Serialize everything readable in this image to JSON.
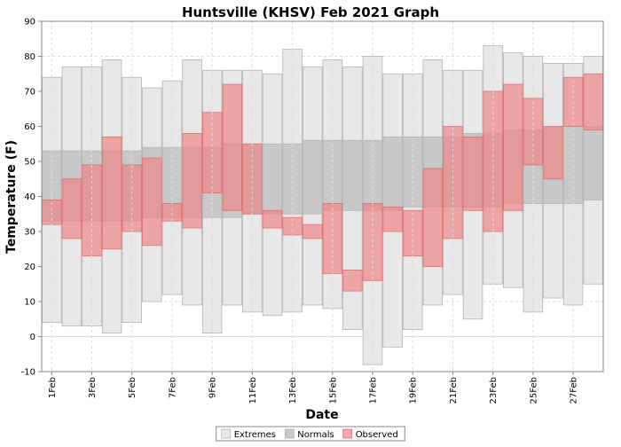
{
  "chart_data": {
    "type": "bar",
    "title": "Huntsville (KHSV) Feb 2021 Graph",
    "xlabel": "Date",
    "ylabel": "Temperature (F)",
    "ylim": [
      -10,
      90
    ],
    "y_ticks": [
      -10,
      0,
      10,
      20,
      30,
      40,
      50,
      60,
      70,
      80,
      90
    ],
    "grid": true,
    "legend_position": "bottom-center",
    "categories": [
      "1Feb",
      "2Feb",
      "3Feb",
      "4Feb",
      "5Feb",
      "6Feb",
      "7Feb",
      "8Feb",
      "9Feb",
      "10Feb",
      "11Feb",
      "12Feb",
      "13Feb",
      "14Feb",
      "15Feb",
      "16Feb",
      "17Feb",
      "18Feb",
      "19Feb",
      "20Feb",
      "21Feb",
      "22Feb",
      "23Feb",
      "24Feb",
      "25Feb",
      "26Feb",
      "27Feb",
      "28Feb"
    ],
    "x_tick_labels": [
      "1Feb",
      "3Feb",
      "5Feb",
      "7Feb",
      "9Feb",
      "11Feb",
      "13Feb",
      "15Feb",
      "17Feb",
      "19Feb",
      "21Feb",
      "23Feb",
      "25Feb",
      "27Feb"
    ],
    "series": [
      {
        "name": "Extremes",
        "color": "#e8e8e8",
        "low": [
          4,
          3,
          3,
          1,
          4,
          10,
          12,
          9,
          1,
          9,
          7,
          6,
          7,
          9,
          8,
          2,
          -8,
          -3,
          2,
          9,
          12,
          5,
          15,
          14,
          7,
          11,
          9,
          15
        ],
        "high": [
          74,
          77,
          77,
          79,
          74,
          71,
          73,
          79,
          76,
          76,
          76,
          75,
          82,
          77,
          79,
          77,
          80,
          75,
          75,
          79,
          76,
          76,
          83,
          81,
          80,
          78,
          78,
          80
        ]
      },
      {
        "name": "Normals",
        "color": "#c8c8c8",
        "low": [
          33,
          33,
          33,
          33,
          33,
          34,
          34,
          34,
          34,
          34,
          35,
          35,
          35,
          35,
          36,
          36,
          36,
          36,
          37,
          37,
          37,
          37,
          37,
          38,
          38,
          38,
          38,
          39
        ],
        "high": [
          53,
          53,
          53,
          53,
          53,
          54,
          54,
          54,
          54,
          55,
          55,
          55,
          55,
          56,
          56,
          56,
          56,
          57,
          57,
          57,
          57,
          58,
          58,
          59,
          59,
          60,
          60,
          60
        ]
      },
      {
        "name": "Observed",
        "color": "#f08080",
        "low": [
          32,
          28,
          23,
          25,
          30,
          26,
          33,
          31,
          41,
          36,
          35,
          31,
          29,
          28,
          18,
          13,
          16,
          30,
          23,
          20,
          28,
          36,
          30,
          36,
          49,
          45,
          60,
          59
        ],
        "high": [
          39,
          45,
          49,
          57,
          49,
          51,
          38,
          58,
          64,
          72,
          55,
          36,
          34,
          32,
          38,
          19,
          38,
          37,
          36,
          48,
          60,
          57,
          70,
          72,
          68,
          60,
          74,
          75
        ]
      }
    ]
  }
}
